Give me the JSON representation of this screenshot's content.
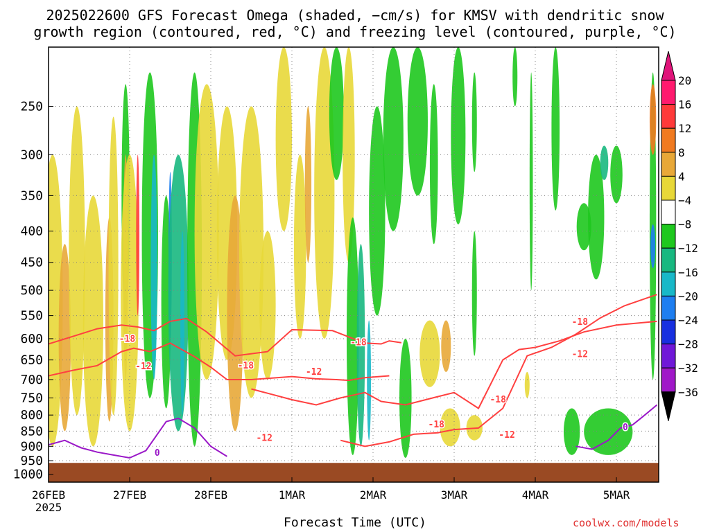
{
  "title": {
    "line1": "2025022600 GFS Forecast Omega (shaded, −cm/s) for KMSV with dendritic snow",
    "line2": "growth region (contoured, red, °C) and freezing level (contoured, purple, °C)"
  },
  "credit": "coolwx.com/models",
  "colors": {
    "ground": "#9a4a23",
    "dgz_contour": "#ff4040",
    "freezing_contour": "#9a18c8",
    "grid": "#808080"
  },
  "chart_data": {
    "type": "heatmap",
    "xlabel": "Forecast Time (UTC)",
    "x_ticks": [
      "26FEB",
      "27FEB",
      "28FEB",
      "1MAR",
      "2MAR",
      "3MAR",
      "4MAR",
      "5MAR"
    ],
    "x_year_label": "2025",
    "xlim_days": [
      0,
      7.5
    ],
    "y_ticks": [
      250,
      300,
      350,
      400,
      450,
      500,
      550,
      600,
      650,
      700,
      750,
      800,
      850,
      900,
      950,
      1000
    ],
    "ylim_hpa": [
      200,
      1030
    ],
    "grid": true,
    "colorbar": {
      "labels": [
        "20",
        "16",
        "12",
        "8",
        "4",
        "−4",
        "−8",
        "−12",
        "−16",
        "−20",
        "−24",
        "−28",
        "−32",
        "−36"
      ],
      "colors": [
        "#ff1a6e",
        "#ff3a3a",
        "#f07a20",
        "#e8a838",
        "#e8d838",
        "#ffffff",
        "#1ec81e",
        "#18b880",
        "#18b8c8",
        "#1e7ef0",
        "#1830e0",
        "#7018d8",
        "#a018c8",
        "#a8a8a8"
      ],
      "top_extend_color": "#e0147a",
      "bottom_extend_color": "#000000"
    },
    "contour_labels": [
      {
        "text": "-18",
        "day": 0.97,
        "p": 601
      },
      {
        "text": "-12",
        "day": 1.17,
        "p": 666
      },
      {
        "text": "0",
        "day": 1.34,
        "p": 923
      },
      {
        "text": "-18",
        "day": 2.43,
        "p": 664
      },
      {
        "text": "-12",
        "day": 2.66,
        "p": 873
      },
      {
        "text": "-12",
        "day": 3.27,
        "p": 680
      },
      {
        "text": "-18",
        "day": 3.82,
        "p": 609
      },
      {
        "text": "-18",
        "day": 4.78,
        "p": 829
      },
      {
        "text": "-18",
        "day": 5.54,
        "p": 755
      },
      {
        "text": "-12",
        "day": 5.65,
        "p": 863
      },
      {
        "text": "-18",
        "day": 6.55,
        "p": 564
      },
      {
        "text": "-12",
        "day": 6.55,
        "p": 636
      },
      {
        "text": "0",
        "day": 7.11,
        "p": 838
      }
    ],
    "series": [
      {
        "kind": "dgz-minus18-upper",
        "day": [
          0,
          0.35,
          0.6,
          0.9,
          1.1,
          1.3,
          1.5,
          1.7,
          1.95,
          2.3,
          2.7,
          3.0,
          3.5,
          3.9,
          4.1,
          4.2,
          4.35
        ],
        "p": [
          612,
          592,
          578,
          570,
          574,
          582,
          562,
          556,
          585,
          640,
          630,
          580,
          582,
          610,
          612,
          605,
          609
        ]
      },
      {
        "kind": "dgz-minus12-upper",
        "day": [
          0,
          0.3,
          0.6,
          0.9,
          1.05,
          1.25,
          1.5,
          1.8,
          2.0,
          2.2,
          2.5,
          3.0,
          3.3,
          3.55,
          3.7,
          3.9,
          4.2
        ],
        "p": [
          690,
          676,
          664,
          630,
          622,
          630,
          610,
          642,
          668,
          700,
          700,
          692,
          698,
          700,
          702,
          695,
          690
        ]
      },
      {
        "kind": "dgz-minus18-lower",
        "day": [
          2.5,
          3.0,
          3.3,
          3.6,
          3.9,
          4.1,
          4.4,
          4.7,
          5.0,
          5.3,
          5.6,
          5.8,
          6.0,
          6.3,
          6.6,
          7.0,
          7.5
        ],
        "p": [
          725,
          755,
          770,
          750,
          735,
          760,
          770,
          752,
          735,
          780,
          650,
          625,
          620,
          605,
          585,
          570,
          562
        ]
      },
      {
        "kind": "dgz-minus12-lower",
        "day": [
          3.6,
          3.9,
          4.2,
          4.5,
          4.8,
          5.0,
          5.3,
          5.6,
          5.9,
          6.2,
          6.5,
          6.8,
          7.1,
          7.5
        ],
        "p": [
          880,
          900,
          885,
          860,
          855,
          845,
          840,
          780,
          640,
          620,
          590,
          555,
          530,
          508
        ]
      },
      {
        "kind": "freezing-0-left",
        "day": [
          0,
          0.2,
          0.4,
          0.6,
          0.8,
          1.0,
          1.2,
          1.45,
          1.6,
          1.8,
          2.0,
          2.2
        ],
        "p": [
          895,
          880,
          905,
          920,
          930,
          940,
          915,
          820,
          810,
          840,
          900,
          935
        ]
      },
      {
        "kind": "freezing-0-right",
        "day": [
          6.5,
          6.7,
          6.9,
          7.05,
          7.2,
          7.35,
          7.5
        ],
        "p": [
          900,
          910,
          880,
          840,
          830,
          800,
          770
        ]
      }
    ]
  }
}
